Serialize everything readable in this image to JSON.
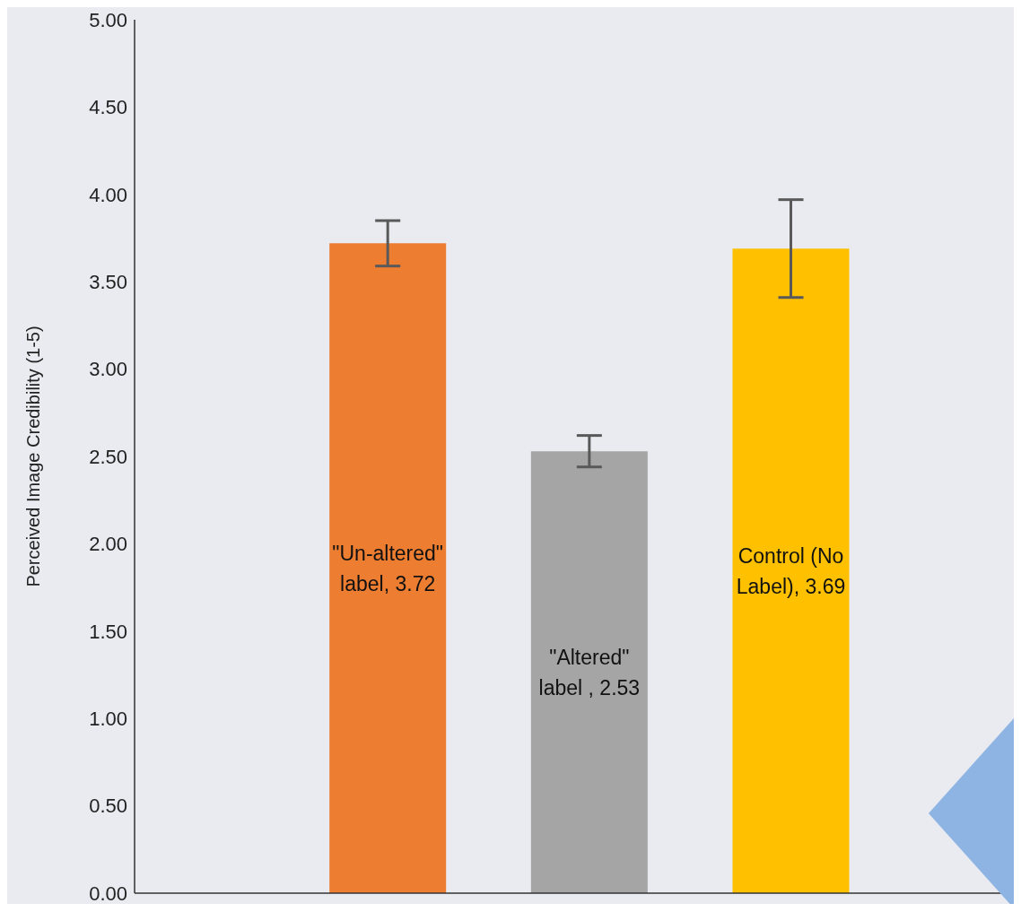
{
  "chart_data": {
    "type": "bar",
    "ylabel": "Perceived Image Credibility (1-5)",
    "categories": [
      null,
      null,
      null
    ],
    "values": [
      3.72,
      2.53,
      3.69
    ],
    "colors": [
      "#ed7d31",
      "#a5a5a5",
      "#ffc000"
    ],
    "errors": [
      [
        3.59,
        3.85
      ],
      [
        2.44,
        2.62
      ],
      [
        3.41,
        3.97
      ]
    ],
    "value_labels": [
      "\"Un-altered\" label, 3.72",
      "\"Altered\" label , 2.53",
      "Control (No Label), 3.69"
    ],
    "ylim": [
      0,
      5
    ],
    "yticks": [
      {
        "value": 0,
        "label": "0.00"
      },
      {
        "value": 0.5,
        "label": "0.50"
      },
      {
        "value": 1,
        "label": "1.00"
      },
      {
        "value": 1.5,
        "label": "1.50"
      },
      {
        "value": 2,
        "label": "2.00"
      },
      {
        "value": 2.5,
        "label": "2.50"
      },
      {
        "value": 3,
        "label": "3.00"
      },
      {
        "value": 3.5,
        "label": "3.50"
      },
      {
        "value": 4,
        "label": "4.00"
      },
      {
        "value": 4.5,
        "label": "4.50"
      },
      {
        "value": 5,
        "label": "5.00"
      }
    ]
  }
}
